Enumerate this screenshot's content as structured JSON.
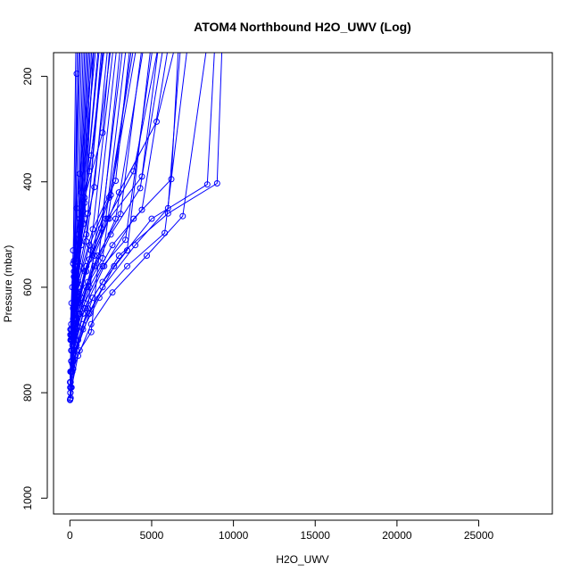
{
  "chart_data": {
    "type": "scatter",
    "title": "ATOM4 Northbound H2O_UWV (Log)",
    "xlabel": "H2O_UWV",
    "ylabel": "Pressure (mbar)",
    "xlim": [
      -1000,
      29500
    ],
    "ylim": [
      1030,
      155
    ],
    "y_reversed": true,
    "grid": false,
    "legend": "none",
    "x_ticks": [
      0,
      5000,
      10000,
      15000,
      20000,
      25000
    ],
    "x_tick_labels": [
      "0",
      "5000",
      "10000",
      "15000",
      "20000",
      "25000"
    ],
    "y_ticks": [
      200,
      400,
      600,
      800,
      1000
    ],
    "y_tick_labels": [
      "200",
      "400",
      "600",
      "800",
      "1000"
    ],
    "series_color": "#0000ff",
    "profiles": [
      {
        "x": [
          8800,
          6900,
          4700,
          2600,
          1300,
          500,
          100
        ],
        "y": [
          50,
          465,
          540,
          610,
          670,
          730,
          790
        ]
      },
      {
        "x": [
          9000,
          8400,
          5000,
          2700,
          1200,
          400,
          50
        ],
        "y": [
          60,
          405,
          470,
          560,
          650,
          720,
          810
        ]
      },
      {
        "x": [
          9400,
          9000,
          6000,
          3000,
          1400,
          400,
          50
        ],
        "y": [
          60,
          403,
          460,
          540,
          620,
          710,
          790
        ]
      },
      {
        "x": [
          7600,
          5800,
          3500,
          1800,
          800,
          200,
          30
        ],
        "y": [
          40,
          497,
          560,
          620,
          680,
          740,
          800
        ]
      },
      {
        "x": [
          7200,
          5300,
          3000,
          1500,
          600,
          150
        ],
        "y": [
          45,
          286,
          420,
          540,
          650,
          745
        ]
      },
      {
        "x": [
          7000,
          6000,
          4000,
          2000,
          800,
          200
        ],
        "y": [
          50,
          450,
          520,
          600,
          670,
          740
        ]
      },
      {
        "x": [
          6800,
          6200,
          3900,
          2100,
          900,
          250
        ],
        "y": [
          50,
          395,
          470,
          560,
          640,
          720
        ]
      },
      {
        "x": [
          6500,
          4400,
          2600,
          1200,
          400,
          80
        ],
        "y": [
          50,
          453,
          520,
          600,
          680,
          760
        ]
      },
      {
        "x": [
          6200,
          4300,
          2500,
          1100,
          350
        ],
        "y": [
          50,
          412,
          500,
          590,
          680
        ]
      },
      {
        "x": [
          6000,
          3900,
          2300,
          1000,
          300
        ],
        "y": [
          50,
          380,
          470,
          570,
          670
        ]
      },
      {
        "x": [
          5800,
          4400,
          2400,
          1000,
          300
        ],
        "y": [
          50,
          390,
          470,
          560,
          660
        ]
      },
      {
        "x": [
          5500,
          3400,
          2000,
          900,
          250
        ],
        "y": [
          50,
          510,
          560,
          630,
          700
        ]
      },
      {
        "x": [
          5300,
          3500,
          2000,
          800,
          200
        ],
        "y": [
          50,
          530,
          590,
          650,
          720
        ]
      },
      {
        "x": [
          5000,
          2800,
          1500,
          600,
          100
        ],
        "y": [
          50,
          470,
          560,
          650,
          740
        ]
      },
      {
        "x": [
          4800,
          3100,
          1700,
          700,
          150
        ],
        "y": [
          50,
          461,
          540,
          620,
          710
        ]
      },
      {
        "x": [
          4600,
          2500,
          1300,
          500,
          100
        ],
        "y": [
          50,
          425,
          530,
          630,
          720
        ]
      },
      {
        "x": [
          4400,
          2400,
          1200,
          450,
          90
        ],
        "y": [
          50,
          430,
          520,
          610,
          700
        ]
      },
      {
        "x": [
          4200,
          2000,
          1000,
          400
        ],
        "y": [
          50,
          545,
          600,
          660
        ]
      },
      {
        "x": [
          4000,
          2800,
          1400,
          500,
          100
        ],
        "y": [
          50,
          398,
          490,
          590,
          690
        ]
      },
      {
        "x": [
          3800,
          2200,
          1000,
          350
        ],
        "y": [
          50,
          470,
          560,
          660
        ]
      },
      {
        "x": [
          3600,
          1900,
          900,
          300
        ],
        "y": [
          50,
          488,
          570,
          650
        ]
      },
      {
        "x": [
          3400,
          1300,
          600,
          150
        ],
        "y": [
          50,
          685,
          720,
          760
        ]
      },
      {
        "x": [
          3200,
          1100,
          500,
          100
        ],
        "y": [
          50,
          640,
          700,
          760
        ]
      },
      {
        "x": [
          3000,
          1200,
          500,
          100
        ],
        "y": [
          50,
          547,
          630,
          720
        ]
      },
      {
        "x": [
          2900,
          1000,
          400,
          80
        ],
        "y": [
          50,
          513,
          610,
          720
        ]
      },
      {
        "x": [
          2700,
          2000,
          900,
          250
        ],
        "y": [
          50,
          307,
          430,
          580
        ]
      },
      {
        "x": [
          2600,
          1500,
          700,
          200
        ],
        "y": [
          50,
          410,
          520,
          640
        ]
      },
      {
        "x": [
          2500,
          1300,
          600,
          150
        ],
        "y": [
          50,
          350,
          470,
          600
        ]
      },
      {
        "x": [
          2400,
          1200,
          500,
          100
        ],
        "y": [
          50,
          380,
          500,
          630
        ]
      },
      {
        "x": [
          2300,
          1100,
          450,
          90
        ],
        "y": [
          50,
          460,
          560,
          680
        ]
      },
      {
        "x": [
          2200,
          1000,
          400,
          60
        ],
        "y": [
          50,
          500,
          590,
          700
        ]
      },
      {
        "x": [
          2100,
          900,
          350,
          50
        ],
        "y": [
          50,
          440,
          560,
          690
        ]
      },
      {
        "x": [
          2000,
          800,
          300,
          40
        ],
        "y": [
          50,
          480,
          590,
          700
        ]
      },
      {
        "x": [
          1900,
          700,
          250,
          30
        ],
        "y": [
          50,
          420,
          550,
          690
        ]
      },
      {
        "x": [
          1800,
          600,
          200,
          30
        ],
        "y": [
          50,
          385,
          530,
          680
        ]
      },
      {
        "x": [
          1700,
          800,
          300,
          40
        ],
        "y": [
          50,
          455,
          560,
          690
        ]
      },
      {
        "x": [
          1600,
          900,
          350,
          50
        ],
        "y": [
          50,
          470,
          580,
          700
        ]
      },
      {
        "x": [
          1500,
          700,
          250
        ],
        "y": [
          50,
          520,
          640
        ]
      },
      {
        "x": [
          1400,
          600,
          200
        ],
        "y": [
          50,
          560,
          660
        ]
      },
      {
        "x": [
          1300,
          500,
          150
        ],
        "y": [
          50,
          600,
          690
        ]
      },
      {
        "x": [
          1200,
          450,
          100
        ],
        "y": [
          50,
          650,
          720
        ]
      },
      {
        "x": [
          1100,
          400,
          80
        ],
        "y": [
          50,
          670,
          740
        ]
      },
      {
        "x": [
          1000,
          350,
          60
        ],
        "y": [
          50,
          700,
          760
        ]
      },
      {
        "x": [
          900,
          300,
          40
        ],
        "y": [
          50,
          730,
          790
        ]
      },
      {
        "x": [
          800,
          200,
          30
        ],
        "y": [
          50,
          755,
          800
        ]
      },
      {
        "x": [
          700,
          150,
          20
        ],
        "y": [
          50,
          700,
          812
        ]
      },
      {
        "x": [
          420,
          400,
          300,
          200,
          100,
          30,
          10
        ],
        "y": [
          195,
          450,
          560,
          640,
          700,
          760,
          814
        ]
      },
      {
        "x": [
          600,
          300,
          150,
          50
        ],
        "y": [
          50,
          600,
          690,
          780
        ]
      },
      {
        "x": [
          500,
          250,
          100,
          20
        ],
        "y": [
          50,
          570,
          680,
          790
        ]
      },
      {
        "x": [
          400,
          200,
          80,
          10
        ],
        "y": [
          50,
          555,
          670,
          780
        ]
      }
    ]
  }
}
